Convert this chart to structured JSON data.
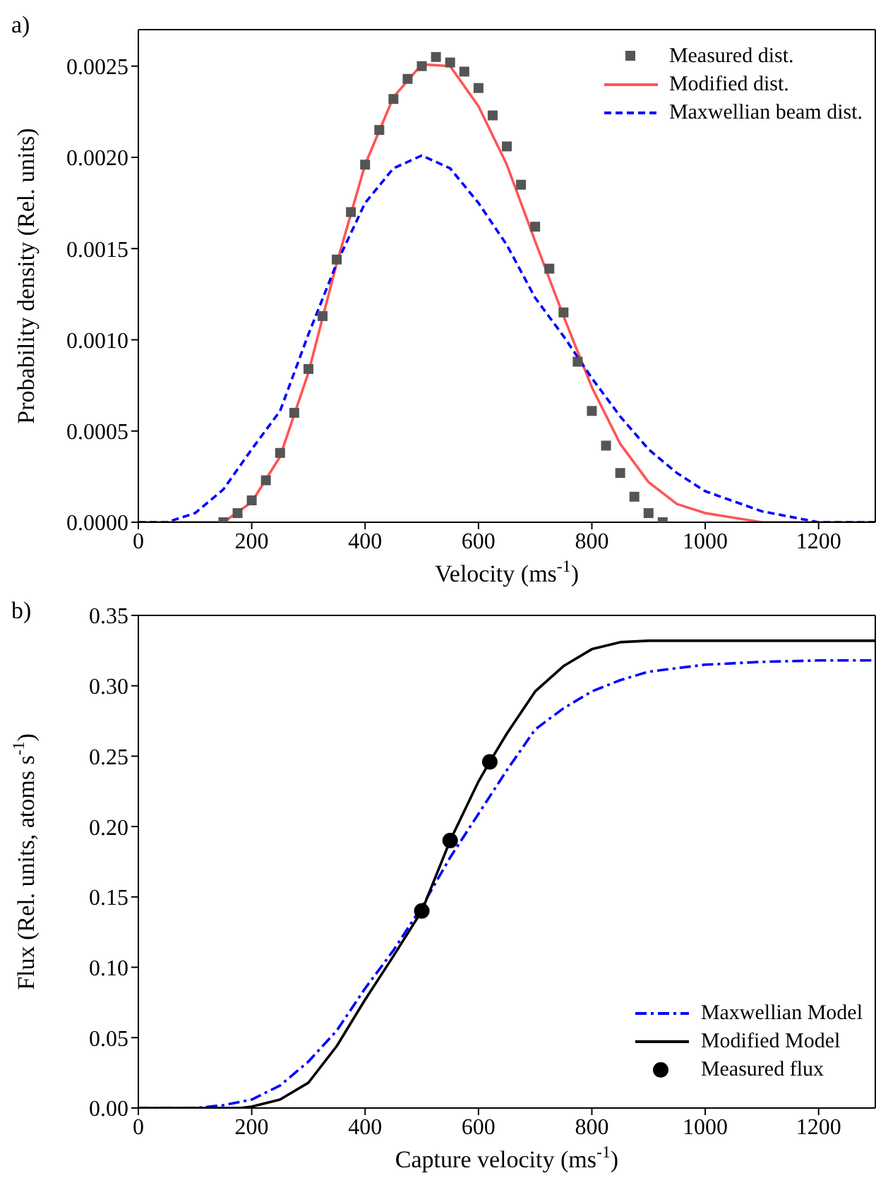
{
  "chart_data": [
    {
      "type": "line",
      "title": "a)",
      "xlabel": "Velocity (ms$^{-1}$)",
      "ylabel": "Probability density (Rel. units)",
      "xlim": [
        0,
        1300
      ],
      "xticks": [
        0,
        200,
        400,
        600,
        800,
        1000,
        1200
      ],
      "ylim": [
        0,
        0.0027
      ],
      "yticks": [
        {
          "value": 0,
          "label": "0.0000"
        },
        {
          "value": 0.0005,
          "label": "0.0005"
        },
        {
          "value": 0.001,
          "label": "0.0010"
        },
        {
          "value": 0.0015,
          "label": "0.0015"
        },
        {
          "value": 0.002,
          "label": "0.0020"
        },
        {
          "value": 0.0025,
          "label": "0.0025"
        }
      ],
      "legend": "top right",
      "grid": false,
      "series": [
        {
          "name": "Measured dist.",
          "type": "scatter",
          "marker": "square",
          "color": "#555555",
          "x": [
            150,
            175,
            200,
            225,
            250,
            275,
            300,
            325,
            350,
            375,
            400,
            425,
            450,
            475,
            500,
            525,
            550,
            575,
            600,
            625,
            650,
            675,
            700,
            725,
            750,
            775,
            800,
            825,
            850,
            875,
            900,
            925
          ],
          "values": [
            0,
            5e-05,
            0.00012,
            0.00023,
            0.00038,
            0.0006,
            0.00084,
            0.00113,
            0.00144,
            0.0017,
            0.00196,
            0.00215,
            0.00232,
            0.00243,
            0.0025,
            0.00255,
            0.00252,
            0.00247,
            0.00238,
            0.00223,
            0.00206,
            0.00185,
            0.00162,
            0.00139,
            0.00115,
            0.00088,
            0.00061,
            0.00042,
            0.00027,
            0.00014,
            5e-05,
            0
          ]
        },
        {
          "name": "Modified dist.",
          "type": "line",
          "line_style": "solid",
          "color": "#ff5555",
          "x": [
            0,
            100,
            150,
            200,
            250,
            300,
            350,
            400,
            450,
            500,
            550,
            600,
            650,
            700,
            750,
            800,
            850,
            900,
            950,
            1000,
            1100,
            1200,
            1300
          ],
          "values": [
            0,
            0,
            0,
            0.00011,
            0.00036,
            0.00082,
            0.00142,
            0.00196,
            0.00233,
            0.00251,
            0.0025,
            0.00228,
            0.00196,
            0.00154,
            0.00113,
            0.00074,
            0.00043,
            0.00022,
            0.0001,
            5e-05,
            0,
            0,
            0
          ]
        },
        {
          "name": "Maxwellian beam dist.",
          "type": "line",
          "line_style": "dashed",
          "color": "#0000ff",
          "x": [
            0,
            50,
            100,
            150,
            200,
            250,
            300,
            350,
            400,
            450,
            500,
            550,
            600,
            650,
            700,
            750,
            800,
            850,
            900,
            950,
            1000,
            1100,
            1200,
            1300
          ],
          "values": [
            0,
            0,
            5e-05,
            0.00018,
            0.0004,
            0.00061,
            0.00103,
            0.00142,
            0.00175,
            0.00194,
            0.00201,
            0.00194,
            0.00175,
            0.00152,
            0.00123,
            0.00102,
            0.00079,
            0.00058,
            0.0004,
            0.00027,
            0.00017,
            6e-05,
            0,
            0
          ]
        }
      ]
    },
    {
      "type": "line",
      "title": "b)",
      "xlabel": "Capture velocity (ms$^{-1}$)",
      "ylabel": "Flux (Rel. units, atoms s$^{-1}$)",
      "xlim": [
        0,
        1300
      ],
      "xticks": [
        0,
        200,
        400,
        600,
        800,
        1000,
        1200
      ],
      "ylim": [
        0,
        0.35
      ],
      "yticks": [
        {
          "value": 0,
          "label": "0.00"
        },
        {
          "value": 0.05,
          "label": "0.05"
        },
        {
          "value": 0.1,
          "label": "0.10"
        },
        {
          "value": 0.15,
          "label": "0.15"
        },
        {
          "value": 0.2,
          "label": "0.20"
        },
        {
          "value": 0.25,
          "label": "0.25"
        },
        {
          "value": 0.3,
          "label": "0.30"
        },
        {
          "value": 0.35,
          "label": "0.35"
        }
      ],
      "legend": "bottom right",
      "grid": false,
      "series": [
        {
          "name": "Maxwellian Model",
          "type": "line",
          "line_style": "dashdot",
          "color": "#0000ff",
          "x": [
            0,
            100,
            150,
            200,
            250,
            300,
            350,
            400,
            450,
            500,
            550,
            600,
            650,
            700,
            750,
            800,
            850,
            900,
            1000,
            1100,
            1200,
            1300
          ],
          "values": [
            0,
            0,
            0.002,
            0.006,
            0.016,
            0.033,
            0.055,
            0.085,
            0.112,
            0.143,
            0.178,
            0.209,
            0.24,
            0.269,
            0.284,
            0.296,
            0.304,
            0.31,
            0.315,
            0.317,
            0.318,
            0.318
          ]
        },
        {
          "name": "Modified Model",
          "type": "line",
          "line_style": "solid",
          "color": "#000000",
          "x": [
            0,
            180,
            200,
            250,
            300,
            350,
            400,
            450,
            500,
            550,
            600,
            620,
            650,
            700,
            750,
            800,
            850,
            900,
            1000,
            1100,
            1200,
            1300
          ],
          "values": [
            0,
            0,
            0.001,
            0.006,
            0.018,
            0.044,
            0.077,
            0.108,
            0.14,
            0.19,
            0.232,
            0.246,
            0.266,
            0.296,
            0.314,
            0.326,
            0.331,
            0.332,
            0.332,
            0.332,
            0.332,
            0.332
          ]
        },
        {
          "name": "Measured flux",
          "type": "scatter",
          "marker": "circle",
          "color": "#000000",
          "x": [
            500,
            550,
            620
          ],
          "values": [
            0.14,
            0.19,
            0.246
          ]
        }
      ]
    }
  ]
}
